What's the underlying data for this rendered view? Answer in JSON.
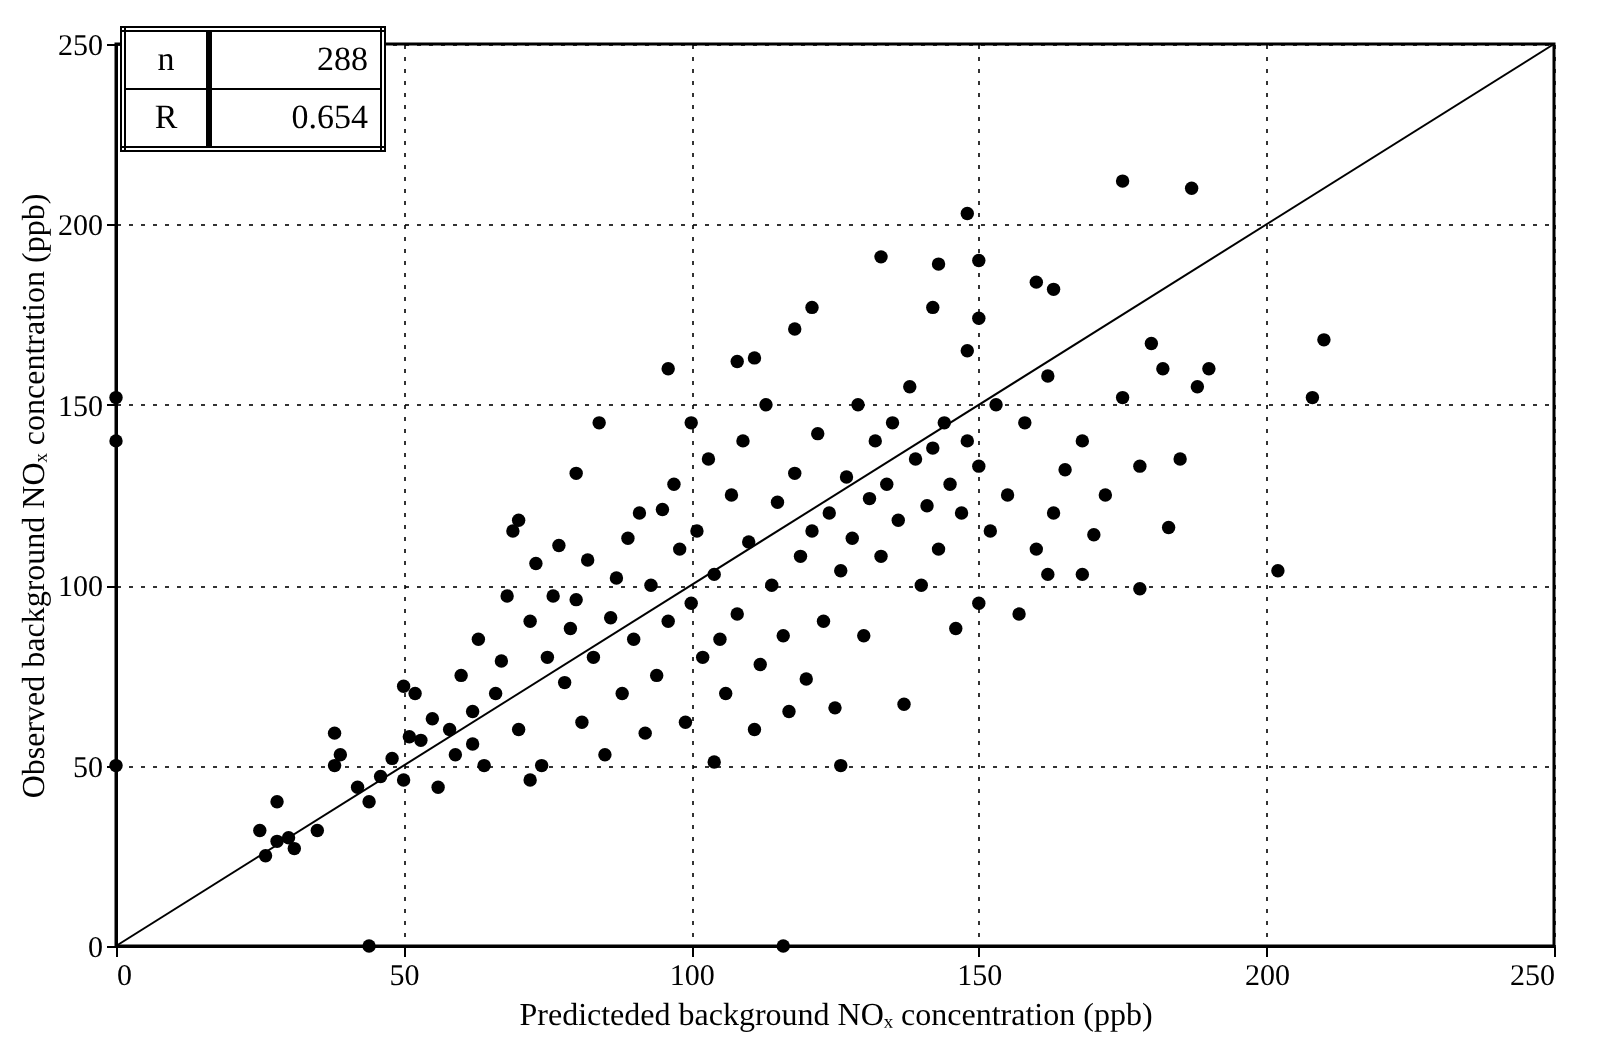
{
  "chart_data": {
    "type": "scatter",
    "xlabel": "Predicteded background NOₓ concentration (ppb)",
    "ylabel": "Observed background NOₓ concentration (ppb)",
    "xlim": [
      0,
      250
    ],
    "ylim": [
      0,
      250
    ],
    "xticks": [
      0,
      50,
      100,
      150,
      200,
      250
    ],
    "yticks": [
      0,
      50,
      100,
      150,
      200,
      250
    ],
    "grid": true,
    "annotations": [
      "n",
      "288",
      "R",
      "0.654"
    ],
    "series": [
      {
        "color": "#000000",
        "marker": "circle",
        "x": [
          0,
          0,
          0,
          44,
          116,
          175,
          187,
          202,
          208,
          210,
          178,
          183,
          148,
          133,
          143,
          150,
          160,
          163,
          150,
          148,
          142,
          121,
          118,
          111,
          108,
          96,
          150,
          162,
          168,
          126,
          104,
          25,
          26,
          28,
          28,
          30,
          31,
          35,
          38,
          39,
          38,
          42,
          44,
          46,
          48,
          50,
          51,
          50,
          52,
          53,
          55,
          56,
          58,
          59,
          60,
          62,
          62,
          63,
          64,
          66,
          67,
          68,
          69,
          70,
          70,
          72,
          72,
          73,
          74,
          75,
          76,
          77,
          78,
          79,
          80,
          80,
          81,
          82,
          83,
          84,
          85,
          86,
          87,
          88,
          89,
          90,
          91,
          92,
          93,
          94,
          95,
          96,
          97,
          98,
          99,
          100,
          100,
          101,
          102,
          103,
          104,
          105,
          106,
          107,
          108,
          109,
          110,
          111,
          112,
          113,
          114,
          115,
          116,
          117,
          118,
          119,
          120,
          121,
          122,
          123,
          124,
          125,
          126,
          127,
          128,
          129,
          130,
          131,
          132,
          133,
          134,
          135,
          136,
          137,
          138,
          139,
          140,
          141,
          142,
          143,
          144,
          145,
          146,
          147,
          148,
          150,
          152,
          153,
          155,
          157,
          158,
          160,
          162,
          163,
          165,
          168,
          170,
          172,
          175,
          178,
          180,
          182,
          185,
          188,
          190
        ],
        "values": [
          152,
          140,
          50,
          0,
          0,
          212,
          210,
          104,
          152,
          168,
          99,
          116,
          203,
          191,
          189,
          190,
          184,
          182,
          174,
          165,
          177,
          177,
          171,
          163,
          162,
          160,
          95,
          103,
          103,
          50,
          51,
          32,
          25,
          29,
          40,
          30,
          27,
          32,
          50,
          53,
          59,
          44,
          40,
          47,
          52,
          46,
          58,
          72,
          70,
          57,
          63,
          44,
          60,
          53,
          75,
          65,
          56,
          85,
          50,
          70,
          79,
          97,
          115,
          60,
          118,
          46,
          90,
          106,
          50,
          80,
          97,
          111,
          73,
          88,
          96,
          131,
          62,
          107,
          80,
          145,
          53,
          91,
          102,
          70,
          113,
          85,
          120,
          59,
          100,
          75,
          121,
          90,
          128,
          110,
          62,
          95,
          145,
          115,
          80,
          135,
          103,
          85,
          70,
          125,
          92,
          140,
          112,
          60,
          78,
          150,
          100,
          123,
          86,
          65,
          131,
          108,
          74,
          115,
          142,
          90,
          120,
          66,
          104,
          130,
          113,
          150,
          86,
          124,
          140,
          108,
          128,
          145,
          118,
          67,
          155,
          135,
          100,
          122,
          138,
          110,
          145,
          128,
          88,
          120,
          140,
          133,
          115,
          150,
          125,
          92,
          145,
          110,
          158,
          120,
          132,
          140,
          114,
          125,
          152,
          133,
          167,
          160,
          135,
          155,
          160
        ]
      },
      {
        "type": "line",
        "marker": "none",
        "color": "#000000",
        "x": [
          0,
          250
        ],
        "values": [
          0,
          250
        ]
      }
    ]
  }
}
